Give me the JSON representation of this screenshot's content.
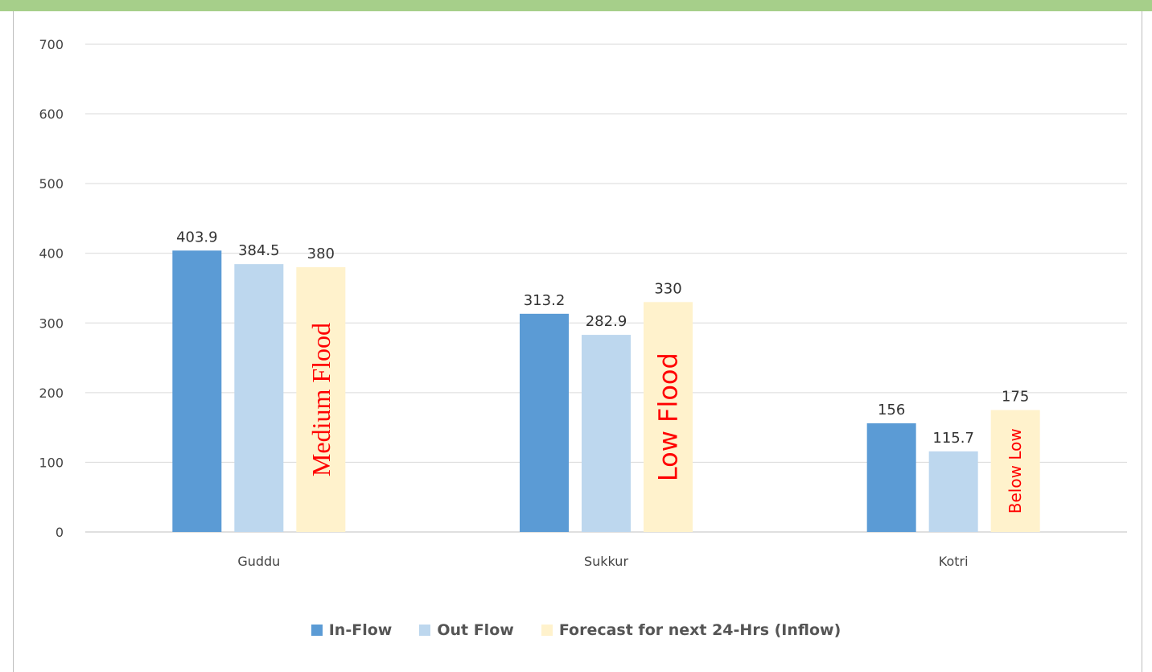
{
  "chart_data": {
    "type": "bar",
    "categories": [
      "Guddu",
      "Sukkur",
      "Kotri"
    ],
    "series": [
      {
        "name": "In-Flow",
        "color": "#5b9bd5",
        "values": [
          403.9,
          313.2,
          156
        ]
      },
      {
        "name": "Out Flow",
        "color": "#bdd7ee",
        "values": [
          384.5,
          282.9,
          115.7
        ]
      },
      {
        "name": "Forecast for next 24-Hrs (Inflow)",
        "color": "#fff2cc",
        "values": [
          380,
          330,
          175
        ]
      }
    ],
    "data_labels": [
      [
        "403.9",
        "384.5",
        "380"
      ],
      [
        "313.2",
        "282.9",
        "330"
      ],
      [
        "156",
        "115.7",
        "175"
      ]
    ],
    "flood_labels": [
      "Medium Flood",
      "Low Flood",
      "Below Low"
    ],
    "flood_label_color": "#ff0000",
    "yticks": [
      "0",
      "100",
      "200",
      "300",
      "400",
      "500",
      "600",
      "700"
    ],
    "ylim": [
      0,
      700
    ],
    "grid": true,
    "legend_position": "bottom",
    "title": "",
    "xlabel": "",
    "ylabel": ""
  }
}
